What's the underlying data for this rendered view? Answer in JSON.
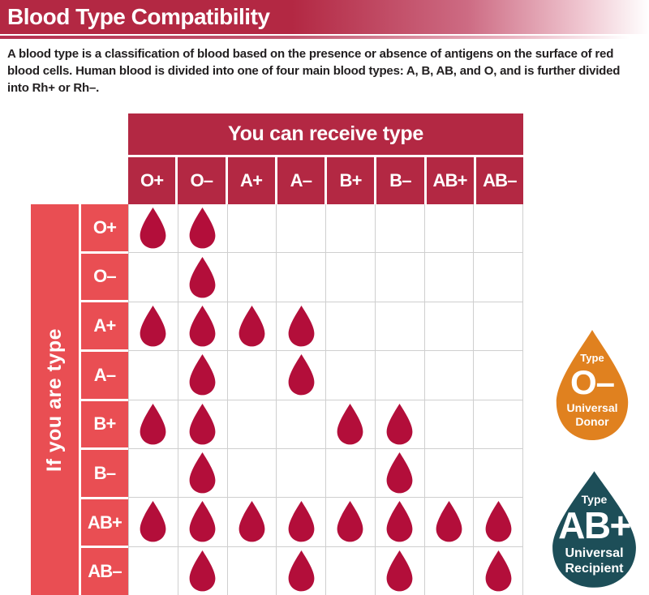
{
  "header": {
    "title": "Blood Type Compatibility"
  },
  "description": "A blood type is a classification of blood based on the presence or absence of antigens on the surface of red blood cells. Human blood is divided into one of four main blood types: A, B, AB, and O, and is further divided into Rh+ or Rh–.",
  "chart_data": {
    "type": "table",
    "title": "Blood Type Compatibility",
    "column_axis_label": "You can receive type",
    "row_axis_label": "If you are type",
    "columns": [
      "O+",
      "O–",
      "A+",
      "A–",
      "B+",
      "B–",
      "AB+",
      "AB–"
    ],
    "rows": [
      "O+",
      "O–",
      "A+",
      "A–",
      "B+",
      "B–",
      "AB+",
      "AB–"
    ],
    "values": [
      [
        1,
        1,
        0,
        0,
        0,
        0,
        0,
        0
      ],
      [
        0,
        1,
        0,
        0,
        0,
        0,
        0,
        0
      ],
      [
        1,
        1,
        1,
        1,
        0,
        0,
        0,
        0
      ],
      [
        0,
        1,
        0,
        1,
        0,
        0,
        0,
        0
      ],
      [
        1,
        1,
        0,
        0,
        1,
        1,
        0,
        0
      ],
      [
        0,
        1,
        0,
        0,
        0,
        1,
        0,
        0
      ],
      [
        1,
        1,
        1,
        1,
        1,
        1,
        1,
        1
      ],
      [
        0,
        1,
        0,
        1,
        0,
        1,
        0,
        1
      ]
    ],
    "marker": "blood-drop-icon",
    "value_meaning": "1 = a blood drop is shown (compatible donor type)"
  },
  "badges": [
    {
      "kicker": "Type",
      "blood_type": "O–",
      "subtitle_line1": "Universal",
      "subtitle_line2": "Donor"
    },
    {
      "kicker": "Type",
      "blood_type": "AB+",
      "subtitle_line1": "Universal",
      "subtitle_line2": "Recipient"
    }
  ],
  "colors": {
    "crimson": "#b32843",
    "sidebar_red": "#e94e53",
    "drop_crimson": "#b30e3a",
    "donor_orange": "#e0811f",
    "recipient_teal": "#1d4e58",
    "grid_line": "#cfcfcf",
    "text_dark": "#232021"
  }
}
